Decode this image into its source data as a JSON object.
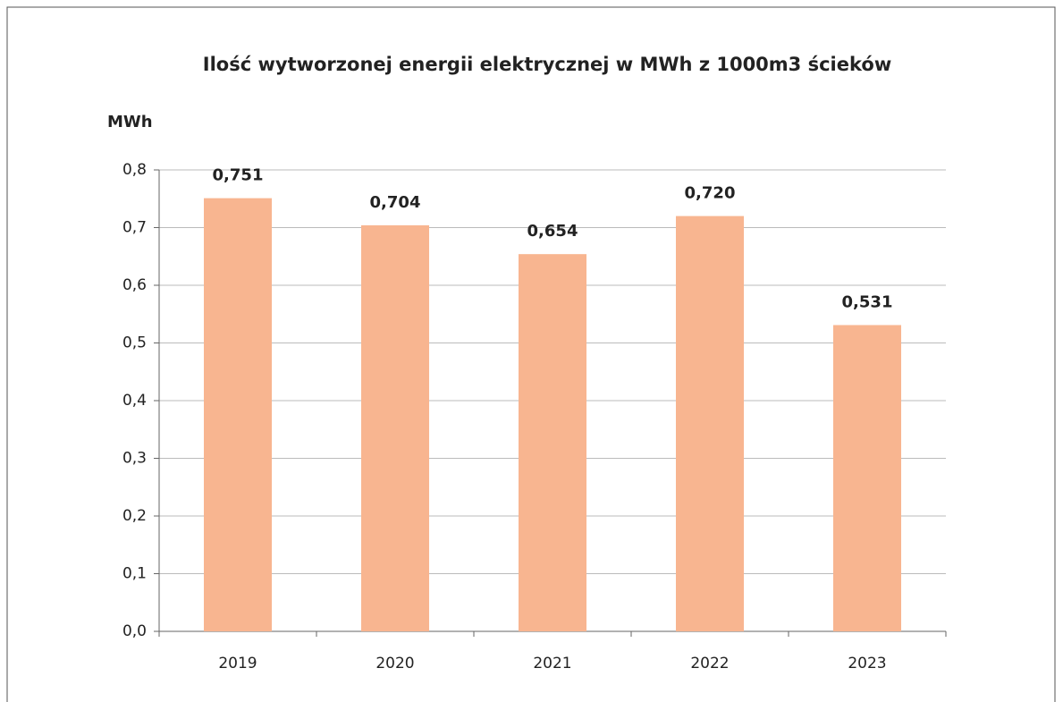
{
  "chart_data": {
    "type": "bar",
    "title": "Ilość wytworzonej energii elektrycznej w MWh z 1000m3 ścieków",
    "y_label": "MWh",
    "categories": [
      "2019",
      "2020",
      "2021",
      "2022",
      "2023"
    ],
    "values": [
      0.751,
      0.704,
      0.654,
      0.72,
      0.531
    ],
    "value_labels": [
      "0,751",
      "0,704",
      "0,654",
      "0,720",
      "0,531"
    ],
    "color": "#f8b590",
    "ylim": [
      0,
      0.8
    ],
    "yticks": [
      {
        "value": 0,
        "label": "0,0"
      },
      {
        "value": 0.1,
        "label": "0,1"
      },
      {
        "value": 0.2,
        "label": "0,2"
      },
      {
        "value": 0.3,
        "label": "0,3"
      },
      {
        "value": 0.4,
        "label": "0,4"
      },
      {
        "value": 0.5,
        "label": "0,5"
      },
      {
        "value": 0.6,
        "label": "0,6"
      },
      {
        "value": 0.7,
        "label": "0,7"
      },
      {
        "value": 0.8,
        "label": "0,8"
      }
    ],
    "grid": true
  }
}
